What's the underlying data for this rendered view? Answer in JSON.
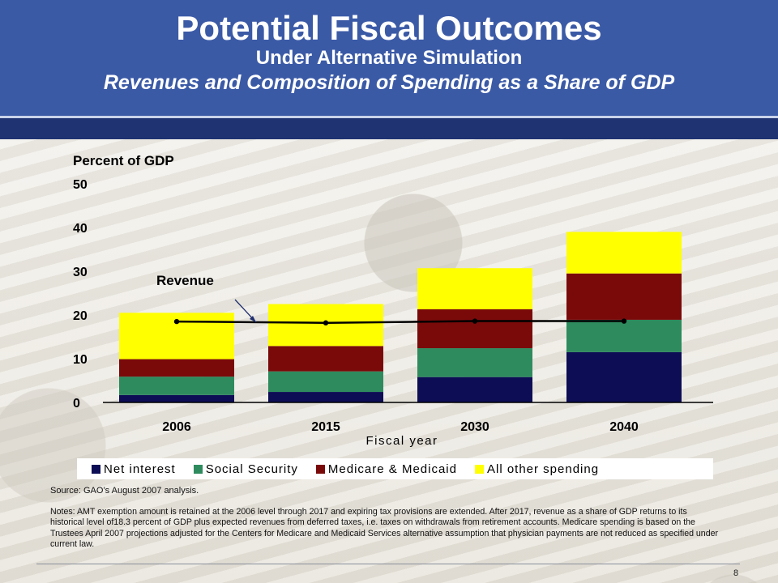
{
  "header": {
    "title": "Potential Fiscal Outcomes",
    "subtitle": "Under Alternative Simulation",
    "subtitle2": "Revenues and Composition of Spending as a Share of GDP"
  },
  "chart_data": {
    "type": "bar",
    "stacked": true,
    "ylabel": "Percent of GDP",
    "xlabel": "Fiscal year",
    "ylim": [
      0,
      50
    ],
    "yticks": [
      0,
      10,
      20,
      30,
      40,
      50
    ],
    "categories": [
      "2006",
      "2015",
      "2030",
      "2040"
    ],
    "series": [
      {
        "name": "Net interest",
        "color": "#0d0d55",
        "values": [
          1.7,
          2.4,
          5.8,
          11.5
        ]
      },
      {
        "name": "Social Security",
        "color": "#2e8b5e",
        "values": [
          4.2,
          4.7,
          6.6,
          7.4
        ]
      },
      {
        "name": "Medicare & Medicaid",
        "color": "#7a0a0a",
        "values": [
          4.0,
          5.8,
          8.9,
          10.6
        ]
      },
      {
        "name": "All other spending",
        "color": "#ffff00",
        "values": [
          10.6,
          9.6,
          9.4,
          9.5
        ]
      }
    ],
    "line": {
      "name": "Revenue",
      "values": [
        18.5,
        18.2,
        18.6,
        18.6
      ],
      "color": "#000000"
    },
    "annotation": "Revenue",
    "legend_position": "bottom"
  },
  "source": "Source:  GAO’s August 2007 analysis.",
  "notes": "Notes: AMT exemption amount is retained at the 2006 level through 2017 and expiring tax provisions are extended.  After 2017, revenue as a share of GDP returns to its historical level of18.3 percent of GDP plus expected revenues from deferred taxes, i.e. taxes on withdrawals  from retirement accounts. Medicare spending is based on the Trustees April 2007 projections adjusted for the Centers for Medicare and Medicaid Services alternative assumption that physician payments are not reduced as specified under current law.",
  "page_number": "8"
}
